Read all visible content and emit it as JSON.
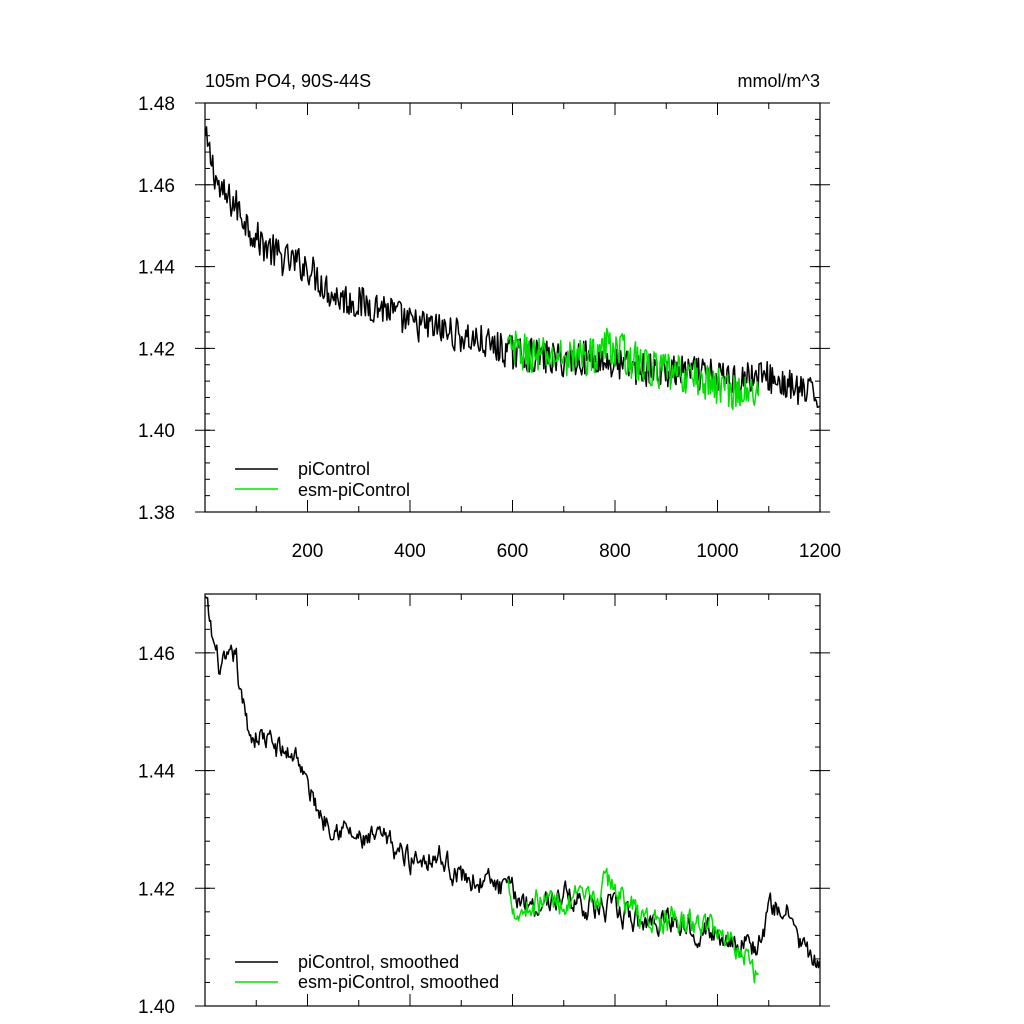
{
  "chart_data": [
    {
      "type": "line",
      "title": "105m PO4, 90S-44S",
      "units": "mmol/m^3",
      "xlabel": "",
      "ylabel": "",
      "xlim": [
        0,
        1200
      ],
      "ylim": [
        1.38,
        1.48
      ],
      "x_ticks": [
        200,
        400,
        600,
        800,
        1000,
        1200
      ],
      "x_tick_labels": [
        "200",
        "400",
        "600",
        "800",
        "1000",
        "1200"
      ],
      "y_ticks": [
        1.38,
        1.4,
        1.42,
        1.44,
        1.46,
        1.48
      ],
      "y_tick_labels": [
        "1.38",
        "1.40",
        "1.42",
        "1.44",
        "1.46",
        "1.48"
      ],
      "legend_position": "bottom-left",
      "series": [
        {
          "name": "piControl",
          "color": "#000000",
          "noise": 0.0042,
          "points": [
            [
              1,
              1.471
            ],
            [
              30,
              1.458
            ],
            [
              60,
              1.455
            ],
            [
              100,
              1.447
            ],
            [
              150,
              1.442
            ],
            [
              200,
              1.44
            ],
            [
              250,
              1.433
            ],
            [
              300,
              1.431
            ],
            [
              350,
              1.43
            ],
            [
              400,
              1.426
            ],
            [
              450,
              1.425
            ],
            [
              500,
              1.423
            ],
            [
              550,
              1.421
            ],
            [
              600,
              1.419
            ],
            [
              650,
              1.418
            ],
            [
              700,
              1.417
            ],
            [
              750,
              1.418
            ],
            [
              800,
              1.416
            ],
            [
              850,
              1.415
            ],
            [
              900,
              1.414
            ],
            [
              950,
              1.414
            ],
            [
              1000,
              1.413
            ],
            [
              1050,
              1.413
            ],
            [
              1100,
              1.413
            ],
            [
              1150,
              1.41
            ],
            [
              1200,
              1.408
            ]
          ]
        },
        {
          "name": "esm-piControl",
          "color": "#00e000",
          "noise": 0.0048,
          "points": [
            [
              590,
              1.42
            ],
            [
              650,
              1.418
            ],
            [
              700,
              1.418
            ],
            [
              750,
              1.418
            ],
            [
              790,
              1.421
            ],
            [
              850,
              1.416
            ],
            [
              900,
              1.414
            ],
            [
              950,
              1.413
            ],
            [
              1000,
              1.411
            ],
            [
              1050,
              1.409
            ],
            [
              1080,
              1.409
            ]
          ]
        }
      ]
    },
    {
      "type": "line",
      "title": "",
      "xlabel": "",
      "ylabel": "",
      "xlim": [
        0,
        1200
      ],
      "ylim": [
        1.4,
        1.47
      ],
      "x_ticks": [
        200,
        400,
        600,
        800,
        1000,
        1200
      ],
      "x_tick_labels": [],
      "y_ticks": [
        1.4,
        1.42,
        1.44,
        1.46
      ],
      "y_tick_labels": [
        "1.40",
        "1.42",
        "1.44",
        "1.46"
      ],
      "legend_position": "bottom-left",
      "series": [
        {
          "name": "piControl, smoothed",
          "color": "#000000",
          "noise": 0.0032,
          "points": [
            [
              1,
              1.469
            ],
            [
              15,
              1.462
            ],
            [
              30,
              1.457
            ],
            [
              50,
              1.458
            ],
            [
              60,
              1.46
            ],
            [
              70,
              1.452
            ],
            [
              90,
              1.446
            ],
            [
              110,
              1.446
            ],
            [
              150,
              1.443
            ],
            [
              180,
              1.443
            ],
            [
              200,
              1.437
            ],
            [
              230,
              1.432
            ],
            [
              260,
              1.431
            ],
            [
              300,
              1.428
            ],
            [
              350,
              1.428
            ],
            [
              400,
              1.425
            ],
            [
              450,
              1.426
            ],
            [
              500,
              1.422
            ],
            [
              550,
              1.421
            ],
            [
              600,
              1.419
            ],
            [
              650,
              1.417
            ],
            [
              700,
              1.419
            ],
            [
              750,
              1.417
            ],
            [
              800,
              1.416
            ],
            [
              850,
              1.414
            ],
            [
              900,
              1.415
            ],
            [
              950,
              1.414
            ],
            [
              1000,
              1.412
            ],
            [
              1050,
              1.411
            ],
            [
              1080,
              1.41
            ],
            [
              1100,
              1.416
            ],
            [
              1130,
              1.417
            ],
            [
              1150,
              1.413
            ],
            [
              1180,
              1.408
            ],
            [
              1200,
              1.406
            ]
          ]
        },
        {
          "name": "esm-piControl, smoothed",
          "color": "#00e000",
          "noise": 0.0035,
          "points": [
            [
              590,
              1.421
            ],
            [
              610,
              1.416
            ],
            [
              650,
              1.418
            ],
            [
              700,
              1.418
            ],
            [
              750,
              1.417
            ],
            [
              790,
              1.421
            ],
            [
              830,
              1.417
            ],
            [
              850,
              1.415
            ],
            [
              900,
              1.414
            ],
            [
              950,
              1.414
            ],
            [
              1000,
              1.413
            ],
            [
              1050,
              1.41
            ],
            [
              1080,
              1.405
            ]
          ]
        }
      ]
    }
  ]
}
